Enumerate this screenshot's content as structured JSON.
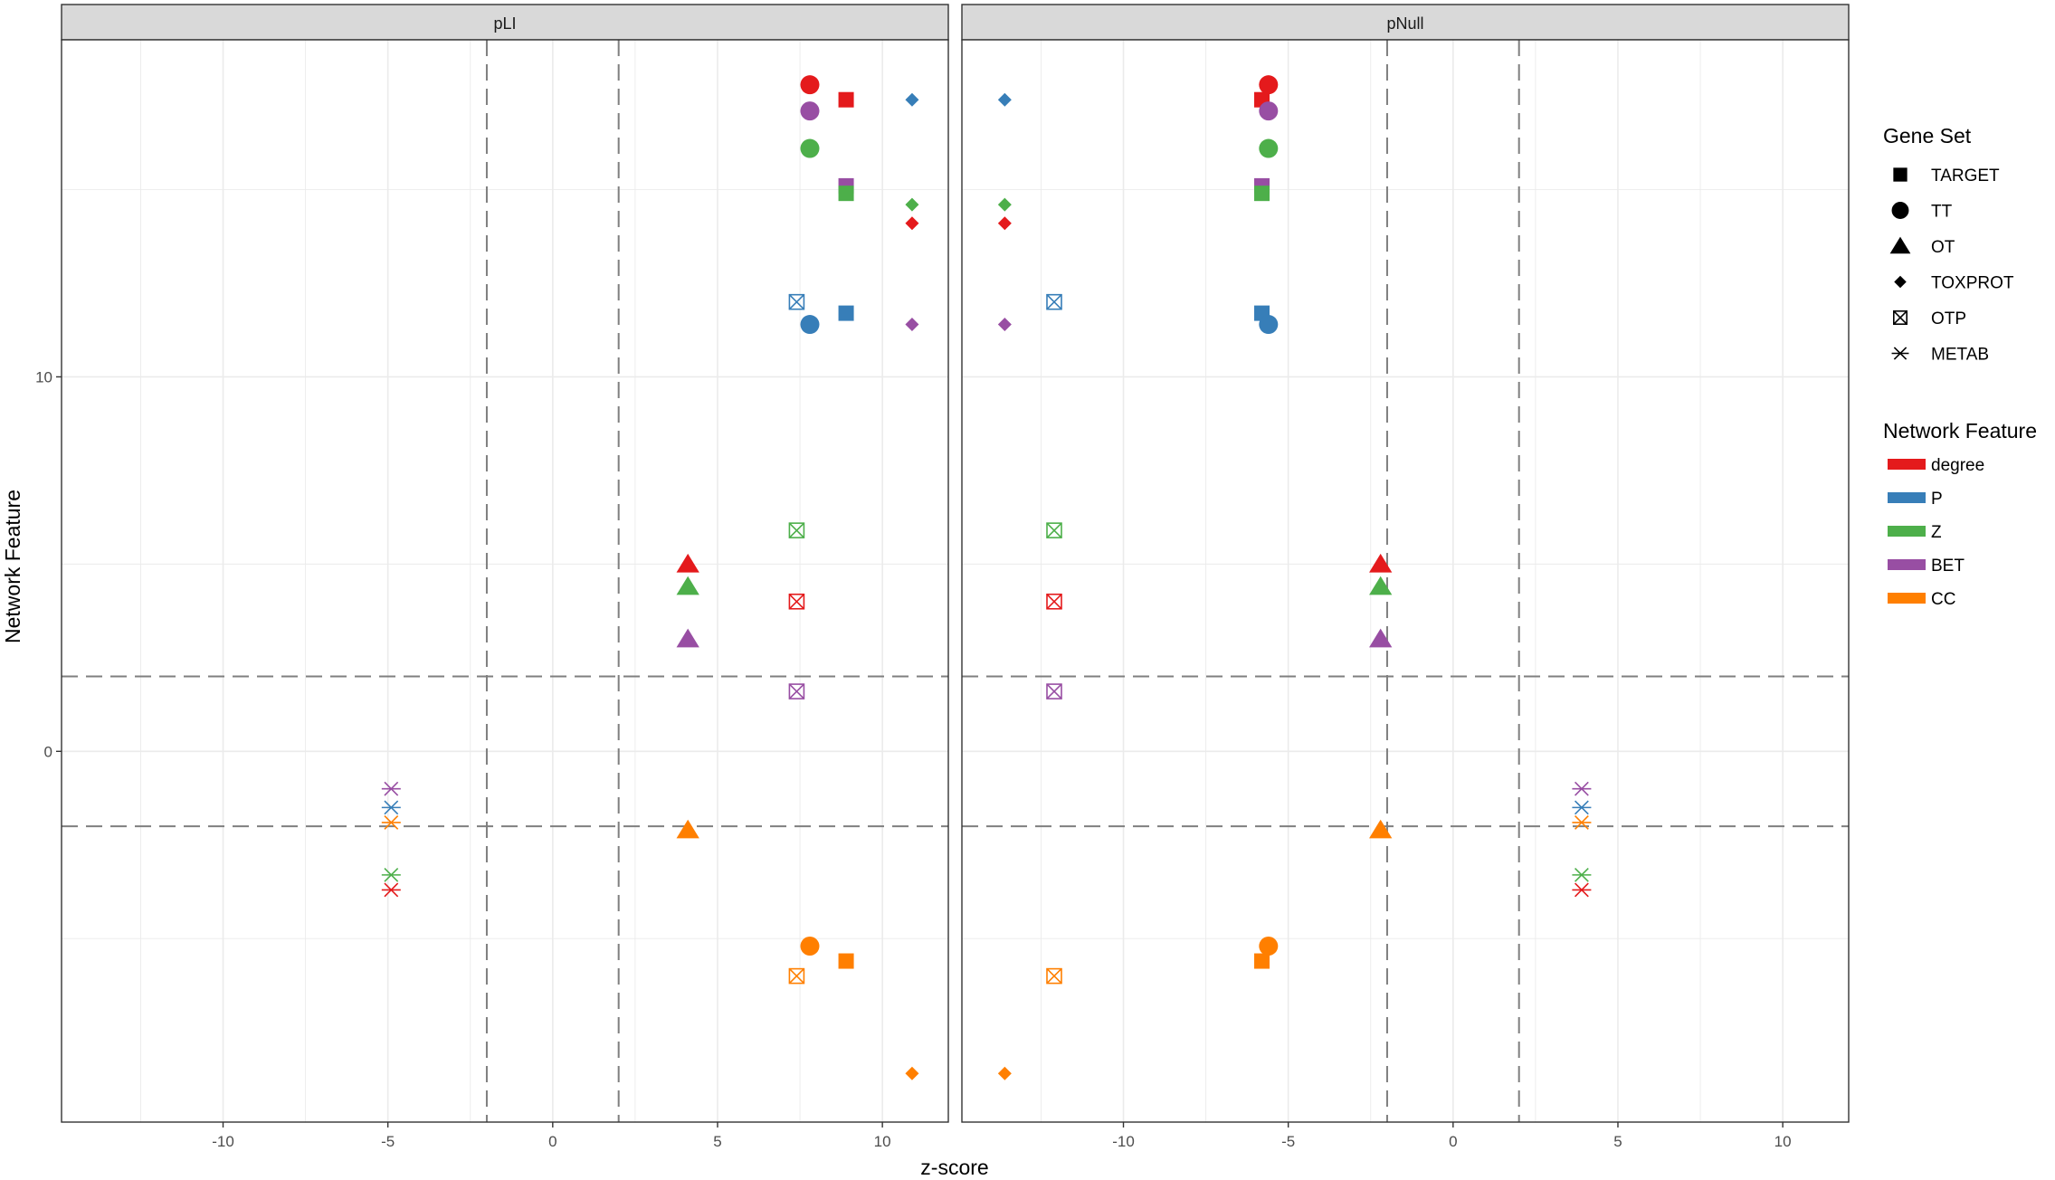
{
  "chart_data": {
    "type": "scatter",
    "xlabel": "z-score",
    "ylabel": "Network Feature",
    "xlim": [
      -14.9,
      12.0
    ],
    "ylim": [
      -9.9,
      19.0
    ],
    "xticks": [
      -10,
      -5,
      0,
      5,
      10
    ],
    "yticks": [
      0,
      10
    ],
    "grid": true,
    "legend_position": "right",
    "panels": [
      {
        "strip": "pLI",
        "vlines": [
          -2,
          2
        ],
        "hlines": [
          2,
          -2
        ],
        "points": [
          {
            "set": "TT",
            "feature": "degree",
            "x": 7.8,
            "y": 17.8
          },
          {
            "set": "TARGET",
            "feature": "degree",
            "x": 8.9,
            "y": 17.4
          },
          {
            "set": "TOXPROT",
            "feature": "P",
            "x": 10.9,
            "y": 17.4
          },
          {
            "set": "TT",
            "feature": "BET",
            "x": 7.8,
            "y": 17.1
          },
          {
            "set": "TT",
            "feature": "Z",
            "x": 7.8,
            "y": 16.1
          },
          {
            "set": "TARGET",
            "feature": "BET",
            "x": 8.9,
            "y": 15.1
          },
          {
            "set": "TARGET",
            "feature": "Z",
            "x": 8.9,
            "y": 14.9
          },
          {
            "set": "TOXPROT",
            "feature": "Z",
            "x": 10.9,
            "y": 14.6
          },
          {
            "set": "TOXPROT",
            "feature": "degree",
            "x": 10.9,
            "y": 14.1
          },
          {
            "set": "OTP",
            "feature": "P",
            "x": 7.4,
            "y": 12.0
          },
          {
            "set": "TARGET",
            "feature": "P",
            "x": 8.9,
            "y": 11.7
          },
          {
            "set": "TT",
            "feature": "P",
            "x": 7.8,
            "y": 11.4
          },
          {
            "set": "TOXPROT",
            "feature": "BET",
            "x": 10.9,
            "y": 11.4
          },
          {
            "set": "OTP",
            "feature": "Z",
            "x": 7.4,
            "y": 5.9
          },
          {
            "set": "OT",
            "feature": "degree",
            "x": 4.1,
            "y": 5.0
          },
          {
            "set": "OT",
            "feature": "Z",
            "x": 4.1,
            "y": 4.4
          },
          {
            "set": "OTP",
            "feature": "degree",
            "x": 7.4,
            "y": 4.0
          },
          {
            "set": "OT",
            "feature": "BET",
            "x": 4.1,
            "y": 3.0
          },
          {
            "set": "OTP",
            "feature": "BET",
            "x": 7.4,
            "y": 1.6
          },
          {
            "set": "METAB",
            "feature": "BET",
            "x": -4.9,
            "y": -1.0
          },
          {
            "set": "METAB",
            "feature": "P",
            "x": -4.9,
            "y": -1.5
          },
          {
            "set": "METAB",
            "feature": "CC",
            "x": -4.9,
            "y": -1.9
          },
          {
            "set": "OT",
            "feature": "CC",
            "x": 4.1,
            "y": -2.1
          },
          {
            "set": "METAB",
            "feature": "Z",
            "x": -4.9,
            "y": -3.3
          },
          {
            "set": "METAB",
            "feature": "degree",
            "x": -4.9,
            "y": -3.7
          },
          {
            "set": "TT",
            "feature": "CC",
            "x": 7.8,
            "y": -5.2
          },
          {
            "set": "TARGET",
            "feature": "CC",
            "x": 8.9,
            "y": -5.6
          },
          {
            "set": "OTP",
            "feature": "CC",
            "x": 7.4,
            "y": -6.0
          },
          {
            "set": "TOXPROT",
            "feature": "CC",
            "x": 10.9,
            "y": -8.6
          }
        ]
      },
      {
        "strip": "pNull",
        "vlines": [
          -2,
          2
        ],
        "hlines": [
          2,
          -2
        ],
        "points": [
          {
            "set": "TT",
            "feature": "degree",
            "x": -5.6,
            "y": 17.8
          },
          {
            "set": "TARGET",
            "feature": "degree",
            "x": -5.8,
            "y": 17.4
          },
          {
            "set": "TOXPROT",
            "feature": "P",
            "x": -13.6,
            "y": 17.4
          },
          {
            "set": "TT",
            "feature": "BET",
            "x": -5.6,
            "y": 17.1
          },
          {
            "set": "TT",
            "feature": "Z",
            "x": -5.6,
            "y": 16.1
          },
          {
            "set": "TARGET",
            "feature": "BET",
            "x": -5.8,
            "y": 15.1
          },
          {
            "set": "TARGET",
            "feature": "Z",
            "x": -5.8,
            "y": 14.9
          },
          {
            "set": "TOXPROT",
            "feature": "Z",
            "x": -13.6,
            "y": 14.6
          },
          {
            "set": "TOXPROT",
            "feature": "degree",
            "x": -13.6,
            "y": 14.1
          },
          {
            "set": "OTP",
            "feature": "P",
            "x": -12.1,
            "y": 12.0
          },
          {
            "set": "TARGET",
            "feature": "P",
            "x": -5.8,
            "y": 11.7
          },
          {
            "set": "TT",
            "feature": "P",
            "x": -5.6,
            "y": 11.4
          },
          {
            "set": "TOXPROT",
            "feature": "BET",
            "x": -13.6,
            "y": 11.4
          },
          {
            "set": "OTP",
            "feature": "Z",
            "x": -12.1,
            "y": 5.9
          },
          {
            "set": "OT",
            "feature": "degree",
            "x": -2.2,
            "y": 5.0
          },
          {
            "set": "OT",
            "feature": "Z",
            "x": -2.2,
            "y": 4.4
          },
          {
            "set": "OTP",
            "feature": "degree",
            "x": -12.1,
            "y": 4.0
          },
          {
            "set": "OT",
            "feature": "BET",
            "x": -2.2,
            "y": 3.0
          },
          {
            "set": "OTP",
            "feature": "BET",
            "x": -12.1,
            "y": 1.6
          },
          {
            "set": "METAB",
            "feature": "BET",
            "x": 3.9,
            "y": -1.0
          },
          {
            "set": "METAB",
            "feature": "P",
            "x": 3.9,
            "y": -1.5
          },
          {
            "set": "METAB",
            "feature": "CC",
            "x": 3.9,
            "y": -1.9
          },
          {
            "set": "OT",
            "feature": "CC",
            "x": -2.2,
            "y": -2.1
          },
          {
            "set": "METAB",
            "feature": "Z",
            "x": 3.9,
            "y": -3.3
          },
          {
            "set": "METAB",
            "feature": "degree",
            "x": 3.9,
            "y": -3.7
          },
          {
            "set": "TT",
            "feature": "CC",
            "x": -5.6,
            "y": -5.2
          },
          {
            "set": "TARGET",
            "feature": "CC",
            "x": -5.8,
            "y": -5.6
          },
          {
            "set": "OTP",
            "feature": "CC",
            "x": -12.1,
            "y": -6.0
          },
          {
            "set": "TOXPROT",
            "feature": "CC",
            "x": -13.6,
            "y": -8.6
          }
        ]
      }
    ],
    "legends": [
      {
        "title": "Gene Set",
        "items": [
          {
            "label": "TARGET",
            "shape": "square"
          },
          {
            "label": "TT",
            "shape": "circle"
          },
          {
            "label": "OT",
            "shape": "triangle"
          },
          {
            "label": "TOXPROT",
            "shape": "diamond"
          },
          {
            "label": "OTP",
            "shape": "boxcross"
          },
          {
            "label": "METAB",
            "shape": "asterisk"
          }
        ]
      },
      {
        "title": "Network Feature",
        "items": [
          {
            "label": "degree",
            "color": "#E41A1C"
          },
          {
            "label": "P",
            "color": "#377EB8"
          },
          {
            "label": "Z",
            "color": "#4DAF4A"
          },
          {
            "label": "BET",
            "color": "#984EA3"
          },
          {
            "label": "CC",
            "color": "#FF7F00"
          }
        ]
      }
    ]
  }
}
